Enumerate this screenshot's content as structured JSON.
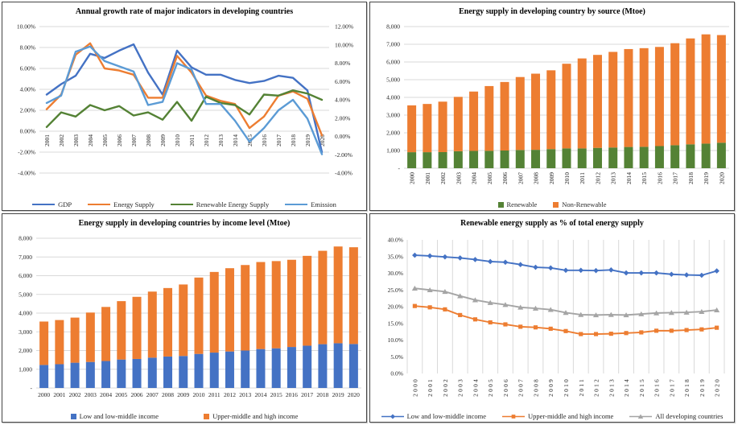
{
  "chart_data": [
    {
      "type": "line",
      "title": "Annual growth rate of major indicators in developing countries",
      "x": [
        "2001",
        "2002",
        "2003",
        "2004",
        "2005",
        "2006",
        "2007",
        "2008",
        "2009",
        "2010",
        "2011",
        "2012",
        "2013",
        "2014",
        "2015",
        "2016",
        "2017",
        "2018",
        "2019",
        "2020"
      ],
      "y_axis_left": {
        "labels": [
          "10.00%",
          "8.00%",
          "6.00%",
          "4.00%",
          "2.00%",
          "0.00%",
          "-2.00%",
          "-4.00%"
        ],
        "min": -4,
        "max": 10
      },
      "y_axis_right": {
        "labels": [
          "12.00%",
          "10.00%",
          "8.00%",
          "6.00%",
          "4.00%",
          "2.00%",
          "0.00%",
          "-2.00%",
          "-4.00%"
        ],
        "min": -4,
        "max": 12
      },
      "grid": "horizontal",
      "legend_position": "bottom",
      "unit": "%",
      "series": [
        {
          "name": "GDP",
          "color": "#4472C4",
          "values": [
            3.5,
            4.5,
            5.3,
            7.4,
            7.0,
            7.7,
            8.3,
            5.6,
            3.5,
            7.7,
            6.1,
            5.4,
            5.4,
            4.9,
            4.6,
            4.8,
            5.3,
            5.1,
            3.9,
            -2.0
          ]
        },
        {
          "name": "Energy Supply",
          "color": "#ED7D31",
          "values": [
            2.1,
            3.5,
            7.3,
            8.4,
            6.0,
            5.8,
            5.4,
            3.2,
            3.2,
            7.2,
            5.6,
            3.4,
            2.9,
            2.6,
            0.3,
            1.4,
            3.4,
            3.8,
            3.1,
            -0.4
          ]
        },
        {
          "name": "Renewable Energy Supply",
          "color": "#548235",
          "values": [
            0.4,
            1.8,
            1.4,
            2.5,
            2.0,
            2.4,
            1.5,
            1.8,
            1.1,
            2.8,
            1.0,
            3.3,
            2.7,
            2.5,
            1.6,
            3.5,
            3.4,
            3.9,
            3.6,
            3.0
          ]
        },
        {
          "name": "Emission",
          "color": "#5B9BD5",
          "values": [
            2.7,
            3.4,
            7.6,
            8.1,
            6.7,
            6.2,
            5.7,
            2.5,
            2.8,
            6.5,
            5.9,
            2.6,
            2.6,
            1.0,
            -1.0,
            0.3,
            2.0,
            3.0,
            1.2,
            -2.2
          ]
        }
      ]
    },
    {
      "type": "bar",
      "stacked": true,
      "title": "Energy supply in developing country by source (Mtoe)",
      "x": [
        "2000",
        "2001",
        "2002",
        "2003",
        "2004",
        "2005",
        "2006",
        "2007",
        "2008",
        "2009",
        "2010",
        "2011",
        "2012",
        "2013",
        "2014",
        "2015",
        "2016",
        "2017",
        "2018",
        "2019",
        "2020"
      ],
      "y_axis": {
        "labels": [
          "8,000",
          "7,000",
          "6,000",
          "5,000",
          "4,000",
          "3,000",
          "2,000",
          "1,000",
          "-"
        ],
        "min": 0,
        "max": 8000
      },
      "x_label_style": "vertical",
      "legend_position": "bottom",
      "unit": "Mtoe",
      "series": [
        {
          "name": "Renewable",
          "color": "#548235",
          "values": [
            905,
            905,
            910,
            960,
            980,
            985,
            1000,
            1030,
            1040,
            1080,
            1120,
            1120,
            1150,
            1170,
            1200,
            1210,
            1250,
            1300,
            1350,
            1390,
            1440
          ]
        },
        {
          "name": "Non-Renewable",
          "color": "#ED7D31",
          "values": [
            2645,
            2725,
            2850,
            3070,
            3350,
            3655,
            3870,
            4120,
            4300,
            4450,
            4780,
            5080,
            5250,
            5400,
            5530,
            5570,
            5600,
            5760,
            5980,
            6170,
            6080
          ]
        }
      ]
    },
    {
      "type": "bar",
      "stacked": true,
      "title": "Energy supply in developing countries by income level (Mtoe)",
      "x": [
        "2000",
        "2001",
        "2002",
        "2003",
        "2004",
        "2005",
        "2006",
        "2007",
        "2008",
        "2009",
        "2010",
        "2011",
        "2012",
        "2013",
        "2014",
        "2015",
        "2016",
        "2017",
        "2018",
        "2019",
        "2020"
      ],
      "y_axis": {
        "labels": [
          "8,000",
          "7,000",
          "6,000",
          "5,000",
          "4,000",
          "3,000",
          "2,000",
          "1,000",
          "-"
        ],
        "min": 0,
        "max": 8000
      },
      "x_label_style": "horizontal",
      "legend_position": "bottom",
      "unit": "Mtoe",
      "series": [
        {
          "name": "Low and low-middle income",
          "color": "#4472C4",
          "values": [
            1230,
            1270,
            1350,
            1390,
            1440,
            1520,
            1550,
            1620,
            1680,
            1710,
            1820,
            1890,
            1950,
            2000,
            2080,
            2120,
            2190,
            2260,
            2340,
            2390,
            2350
          ]
        },
        {
          "name": "Upper-middle and high income",
          "color": "#ED7D31",
          "values": [
            2320,
            2360,
            2410,
            2640,
            2890,
            3120,
            3320,
            3530,
            3660,
            3820,
            4080,
            4310,
            4450,
            4570,
            4650,
            4660,
            4660,
            4800,
            4990,
            5170,
            5170
          ]
        }
      ]
    },
    {
      "type": "line",
      "title": "Renewable energy supply as % of total energy supply",
      "x": [
        "2000",
        "2001",
        "2002",
        "2003",
        "2004",
        "2005",
        "2006",
        "2007",
        "2008",
        "2009",
        "2010",
        "2011",
        "2012",
        "2013",
        "2014",
        "2015",
        "2016",
        "2017",
        "2018",
        "2019",
        "2020"
      ],
      "y_axis": {
        "labels": [
          "40.0%",
          "35.0%",
          "30.0%",
          "25.0%",
          "20.0%",
          "15.0%",
          "10.0%",
          "5.0%",
          "0.0%"
        ],
        "min": 0,
        "max": 40
      },
      "grid": "vertical",
      "legend_position": "bottom",
      "unit": "%",
      "series": [
        {
          "name": "Low and low-middle income",
          "color": "#4472C4",
          "marker": "diamond",
          "values": [
            35.4,
            35.2,
            34.9,
            34.6,
            34.1,
            33.5,
            33.3,
            32.6,
            31.8,
            31.6,
            30.9,
            30.9,
            30.8,
            31.0,
            30.1,
            30.1,
            30.1,
            29.7,
            29.5,
            29.4,
            30.7
          ]
        },
        {
          "name": "Upper-middle and high income",
          "color": "#ED7D31",
          "marker": "square",
          "values": [
            20.2,
            19.8,
            19.2,
            17.5,
            16.2,
            15.3,
            14.7,
            14.0,
            13.8,
            13.4,
            12.7,
            11.8,
            11.8,
            11.9,
            12.1,
            12.3,
            12.8,
            12.8,
            13.0,
            13.2,
            13.7
          ]
        },
        {
          "name": "All developing countries",
          "color": "#A5A5A5",
          "marker": "triangle",
          "values": [
            25.5,
            25.0,
            24.5,
            23.2,
            22.0,
            21.2,
            20.6,
            19.8,
            19.5,
            19.1,
            18.2,
            17.6,
            17.5,
            17.6,
            17.5,
            17.8,
            18.1,
            18.2,
            18.3,
            18.5,
            19.0
          ]
        }
      ]
    }
  ]
}
